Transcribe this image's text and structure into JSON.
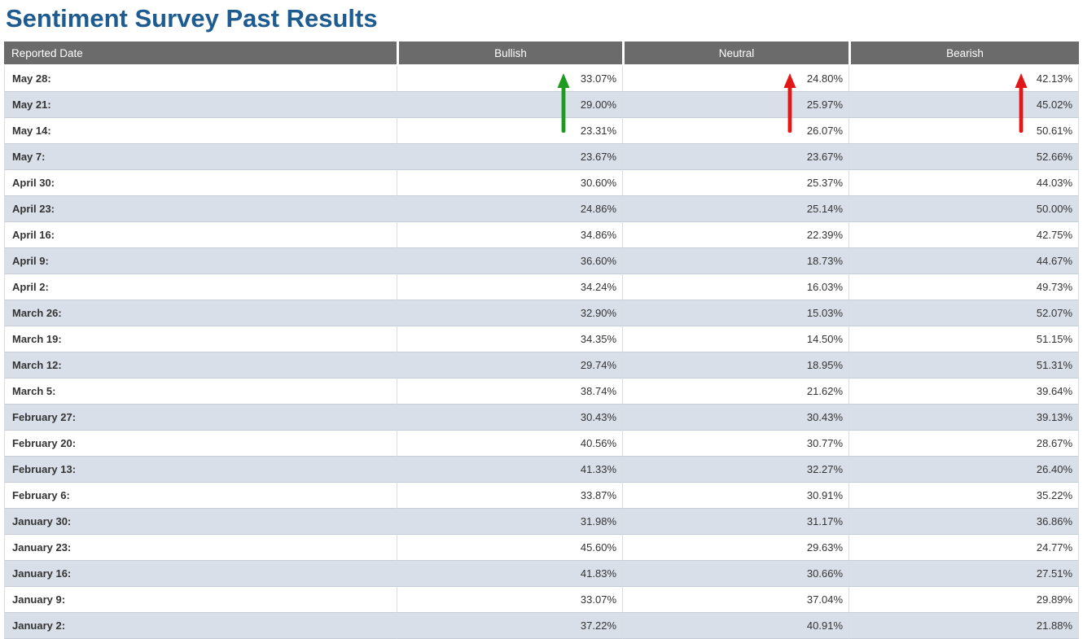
{
  "title": "Sentiment Survey Past Results",
  "colors": {
    "title": "#1d5b90",
    "header_bg": "#6b6b6b",
    "header_text": "#ffffff",
    "row_alt_bg": "#d9dfe9",
    "row_text": "#333333",
    "arrow_green": "#1e9b1e",
    "arrow_red": "#e21717"
  },
  "table": {
    "columns": [
      "Reported Date",
      "Bullish",
      "Neutral",
      "Bearish"
    ],
    "rows": [
      {
        "date": "May 28:",
        "bullish": "33.07%",
        "neutral": "24.80%",
        "bearish": "42.13%"
      },
      {
        "date": "May 21:",
        "bullish": "29.00%",
        "neutral": "25.97%",
        "bearish": "45.02%"
      },
      {
        "date": "May 14:",
        "bullish": "23.31%",
        "neutral": "26.07%",
        "bearish": "50.61%"
      },
      {
        "date": "May 7:",
        "bullish": "23.67%",
        "neutral": "23.67%",
        "bearish": "52.66%"
      },
      {
        "date": "April 30:",
        "bullish": "30.60%",
        "neutral": "25.37%",
        "bearish": "44.03%"
      },
      {
        "date": "April 23:",
        "bullish": "24.86%",
        "neutral": "25.14%",
        "bearish": "50.00%"
      },
      {
        "date": "April 16:",
        "bullish": "34.86%",
        "neutral": "22.39%",
        "bearish": "42.75%"
      },
      {
        "date": "April 9:",
        "bullish": "36.60%",
        "neutral": "18.73%",
        "bearish": "44.67%"
      },
      {
        "date": "April 2:",
        "bullish": "34.24%",
        "neutral": "16.03%",
        "bearish": "49.73%"
      },
      {
        "date": "March 26:",
        "bullish": "32.90%",
        "neutral": "15.03%",
        "bearish": "52.07%"
      },
      {
        "date": "March 19:",
        "bullish": "34.35%",
        "neutral": "14.50%",
        "bearish": "51.15%"
      },
      {
        "date": "March 12:",
        "bullish": "29.74%",
        "neutral": "18.95%",
        "bearish": "51.31%"
      },
      {
        "date": "March 5:",
        "bullish": "38.74%",
        "neutral": "21.62%",
        "bearish": "39.64%"
      },
      {
        "date": "February 27:",
        "bullish": "30.43%",
        "neutral": "30.43%",
        "bearish": "39.13%"
      },
      {
        "date": "February 20:",
        "bullish": "40.56%",
        "neutral": "30.77%",
        "bearish": "28.67%"
      },
      {
        "date": "February 13:",
        "bullish": "41.33%",
        "neutral": "32.27%",
        "bearish": "26.40%"
      },
      {
        "date": "February 6:",
        "bullish": "33.87%",
        "neutral": "30.91%",
        "bearish": "35.22%"
      },
      {
        "date": "January 30:",
        "bullish": "31.98%",
        "neutral": "31.17%",
        "bearish": "36.86%"
      },
      {
        "date": "January 23:",
        "bullish": "45.60%",
        "neutral": "29.63%",
        "bearish": "24.77%"
      },
      {
        "date": "January 16:",
        "bullish": "41.83%",
        "neutral": "30.66%",
        "bearish": "27.51%"
      },
      {
        "date": "January 9:",
        "bullish": "33.07%",
        "neutral": "37.04%",
        "bearish": "29.89%"
      },
      {
        "date": "January 2:",
        "bullish": "37.22%",
        "neutral": "40.91%",
        "bearish": "21.88%"
      }
    ]
  },
  "arrows": [
    {
      "name": "bullish-trend-up-arrow",
      "column": "bullish",
      "direction": "up",
      "color": "#1e9b1e",
      "spans_rows": [
        "May 28:",
        "May 21:",
        "May 14:"
      ]
    },
    {
      "name": "neutral-trend-up-arrow",
      "column": "neutral",
      "direction": "up",
      "color": "#e21717",
      "spans_rows": [
        "May 28:",
        "May 21:",
        "May 14:"
      ]
    },
    {
      "name": "bearish-trend-up-arrow",
      "column": "bearish",
      "direction": "up",
      "color": "#e21717",
      "spans_rows": [
        "May 28:",
        "May 21:",
        "May 14:"
      ]
    }
  ]
}
